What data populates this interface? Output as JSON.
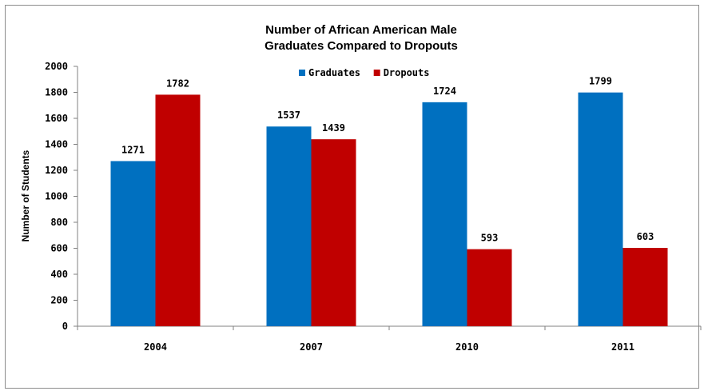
{
  "chart_data": {
    "type": "bar",
    "title": "Number of African American Male Graduates Compared to Dropouts",
    "title_lines": [
      "Number of African American Male",
      "Graduates Compared to Dropouts"
    ],
    "xlabel": "",
    "ylabel": "Number of Students",
    "categories": [
      "2004",
      "2007",
      "2010",
      "2011"
    ],
    "series": [
      {
        "name": "Graduates",
        "color": "#0070C0",
        "values": [
          1271,
          1537,
          1724,
          1799
        ]
      },
      {
        "name": "Dropouts",
        "color": "#C00000",
        "values": [
          1782,
          1439,
          593,
          603
        ]
      }
    ],
    "ylim": [
      0,
      2000
    ],
    "yticks": [
      0,
      200,
      400,
      600,
      800,
      1000,
      1200,
      1400,
      1600,
      1800,
      2000
    ],
    "grid": false,
    "legend_position": "top-center",
    "data_labels": true
  }
}
